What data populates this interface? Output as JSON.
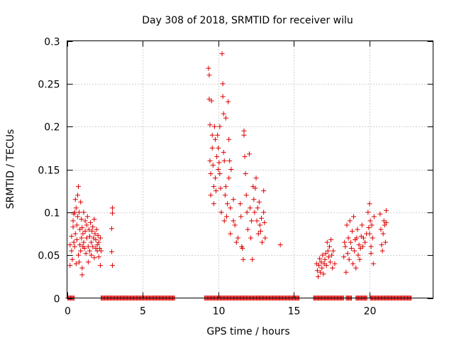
{
  "chart_data": {
    "type": "scatter",
    "title": "Day 308 of 2018, SRMTID for receiver wilu",
    "xlabel": "GPS time / hours",
    "ylabel": "SRMTID / TECUs",
    "xlim": [
      0,
      24.2
    ],
    "ylim": [
      0,
      0.3
    ],
    "xticks": [
      0,
      5,
      10,
      15,
      20
    ],
    "xtick_labels": [
      "0",
      "5",
      "10",
      "15",
      "20"
    ],
    "yticks": [
      0,
      0.05,
      0.1,
      0.15,
      0.2,
      0.25,
      0.3
    ],
    "ytick_labels": [
      "0",
      "0.05",
      "0.1",
      "0.15",
      "0.2",
      "0.25",
      "0.3"
    ],
    "grid": true,
    "marker": "+",
    "color": "#dd0000",
    "series": [
      {
        "name": "SRMTID",
        "points": [
          [
            0.2,
            0.062
          ],
          [
            0.2,
            0.038
          ],
          [
            0.3,
            0.055
          ],
          [
            0.3,
            0.072
          ],
          [
            0.35,
            0.045
          ],
          [
            0.4,
            0.09
          ],
          [
            0.4,
            0.083
          ],
          [
            0.45,
            0.098
          ],
          [
            0.45,
            0.065
          ],
          [
            0.5,
            0.1
          ],
          [
            0.5,
            0.06
          ],
          [
            0.55,
            0.075
          ],
          [
            0.55,
            0.115
          ],
          [
            0.6,
            0.105
          ],
          [
            0.6,
            0.04
          ],
          [
            0.65,
            0.085
          ],
          [
            0.65,
            0.068
          ],
          [
            0.7,
            0.12
          ],
          [
            0.7,
            0.095
          ],
          [
            0.75,
            0.13
          ],
          [
            0.75,
            0.05
          ],
          [
            0.8,
            0.1
          ],
          [
            0.8,
            0.042
          ],
          [
            0.85,
            0.08
          ],
          [
            0.85,
            0.062
          ],
          [
            0.9,
            0.112
          ],
          [
            0.9,
            0.055
          ],
          [
            0.95,
            0.092
          ],
          [
            0.95,
            0.07
          ],
          [
            1.0,
            0.035
          ],
          [
            1.0,
            0.027
          ],
          [
            1.0,
            0.082
          ],
          [
            1.05,
            0.06
          ],
          [
            1.05,
            0.075
          ],
          [
            1.1,
            0.065
          ],
          [
            1.1,
            0.1
          ],
          [
            1.15,
            0.058
          ],
          [
            1.2,
            0.09
          ],
          [
            1.2,
            0.078
          ],
          [
            1.25,
            0.052
          ],
          [
            1.3,
            0.07
          ],
          [
            1.3,
            0.085
          ],
          [
            1.35,
            0.095
          ],
          [
            1.4,
            0.06
          ],
          [
            1.4,
            0.042
          ],
          [
            1.45,
            0.08
          ],
          [
            1.5,
            0.072
          ],
          [
            1.5,
            0.055
          ],
          [
            1.55,
            0.088
          ],
          [
            1.6,
            0.065
          ],
          [
            1.6,
            0.05
          ],
          [
            1.65,
            0.078
          ],
          [
            1.7,
            0.06
          ],
          [
            1.7,
            0.083
          ],
          [
            1.75,
            0.07
          ],
          [
            1.8,
            0.047
          ],
          [
            1.8,
            0.092
          ],
          [
            1.85,
            0.075
          ],
          [
            1.9,
            0.058
          ],
          [
            1.9,
            0.068
          ],
          [
            1.95,
            0.08
          ],
          [
            2.0,
            0.062
          ],
          [
            2.0,
            0.055
          ],
          [
            2.05,
            0.073
          ],
          [
            2.1,
            0.048
          ],
          [
            2.1,
            0.065
          ],
          [
            2.15,
            0.058
          ],
          [
            2.2,
            0.07
          ],
          [
            2.2,
            0.038
          ],
          [
            2.25,
            0.055
          ],
          [
            3.0,
            0.105
          ],
          [
            3.0,
            0.099
          ],
          [
            2.95,
            0.081
          ],
          [
            2.95,
            0.054
          ],
          [
            3.0,
            0.038
          ],
          [
            9.35,
            0.268
          ],
          [
            9.4,
            0.26
          ],
          [
            9.4,
            0.232
          ],
          [
            9.45,
            0.202
          ],
          [
            9.45,
            0.16
          ],
          [
            9.5,
            0.145
          ],
          [
            9.5,
            0.12
          ],
          [
            9.55,
            0.23
          ],
          [
            9.6,
            0.19
          ],
          [
            9.6,
            0.175
          ],
          [
            9.65,
            0.155
          ],
          [
            9.7,
            0.13
          ],
          [
            9.7,
            0.11
          ],
          [
            9.75,
            0.2
          ],
          [
            9.8,
            0.185
          ],
          [
            9.8,
            0.14
          ],
          [
            9.85,
            0.125
          ],
          [
            9.9,
            0.165
          ],
          [
            9.95,
            0.19
          ],
          [
            10.0,
            0.175
          ],
          [
            10.0,
            0.15
          ],
          [
            10.05,
            0.158
          ],
          [
            10.1,
            0.2
          ],
          [
            10.1,
            0.145
          ],
          [
            10.15,
            0.128
          ],
          [
            10.2,
            0.1
          ],
          [
            10.25,
            0.285
          ],
          [
            10.3,
            0.235
          ],
          [
            10.3,
            0.25
          ],
          [
            10.35,
            0.215
          ],
          [
            10.35,
            0.17
          ],
          [
            10.4,
            0.16
          ],
          [
            10.4,
            0.09
          ],
          [
            10.45,
            0.12
          ],
          [
            10.5,
            0.21
          ],
          [
            10.5,
            0.13
          ],
          [
            10.55,
            0.095
          ],
          [
            10.6,
            0.11
          ],
          [
            10.65,
            0.229
          ],
          [
            10.7,
            0.185
          ],
          [
            10.7,
            0.14
          ],
          [
            10.75,
            0.16
          ],
          [
            10.8,
            0.105
          ],
          [
            10.8,
            0.075
          ],
          [
            10.85,
            0.15
          ],
          [
            11.0,
            0.115
          ],
          [
            11.0,
            0.09
          ],
          [
            11.1,
            0.085
          ],
          [
            11.2,
            0.065
          ],
          [
            11.3,
            0.07
          ],
          [
            11.45,
            0.11
          ],
          [
            11.5,
            0.095
          ],
          [
            11.55,
            0.06
          ],
          [
            11.6,
            0.058
          ],
          [
            11.65,
            0.045
          ],
          [
            11.7,
            0.195
          ],
          [
            11.7,
            0.19
          ],
          [
            11.75,
            0.165
          ],
          [
            11.8,
            0.145
          ],
          [
            11.85,
            0.12
          ],
          [
            11.9,
            0.1
          ],
          [
            11.95,
            0.08
          ],
          [
            12.05,
            0.168
          ],
          [
            12.1,
            0.105
          ],
          [
            12.15,
            0.07
          ],
          [
            12.2,
            0.09
          ],
          [
            12.25,
            0.045
          ],
          [
            12.3,
            0.13
          ],
          [
            12.35,
            0.115
          ],
          [
            12.4,
            0.1
          ],
          [
            12.45,
            0.128
          ],
          [
            12.5,
            0.14
          ],
          [
            12.55,
            0.09
          ],
          [
            12.6,
            0.105
          ],
          [
            12.65,
            0.075
          ],
          [
            12.7,
            0.112
          ],
          [
            12.75,
            0.085
          ],
          [
            12.8,
            0.078
          ],
          [
            12.85,
            0.093
          ],
          [
            12.9,
            0.065
          ],
          [
            13.0,
            0.125
          ],
          [
            13.0,
            0.1
          ],
          [
            13.05,
            0.088
          ],
          [
            13.1,
            0.07
          ],
          [
            14.1,
            0.062
          ],
          [
            16.5,
            0.04
          ],
          [
            16.55,
            0.032
          ],
          [
            16.6,
            0.025
          ],
          [
            16.65,
            0.038
          ],
          [
            16.7,
            0.046
          ],
          [
            16.75,
            0.03
          ],
          [
            16.8,
            0.042
          ],
          [
            16.85,
            0.035
          ],
          [
            16.9,
            0.05
          ],
          [
            16.95,
            0.028
          ],
          [
            17.0,
            0.04
          ],
          [
            17.05,
            0.045
          ],
          [
            17.1,
            0.052
          ],
          [
            17.15,
            0.038
          ],
          [
            17.2,
            0.065
          ],
          [
            17.25,
            0.055
          ],
          [
            17.3,
            0.048
          ],
          [
            17.35,
            0.06
          ],
          [
            17.4,
            0.042
          ],
          [
            17.45,
            0.068
          ],
          [
            17.5,
            0.05
          ],
          [
            17.55,
            0.035
          ],
          [
            17.6,
            0.055
          ],
          [
            17.7,
            0.04
          ],
          [
            18.3,
            0.048
          ],
          [
            18.35,
            0.065
          ],
          [
            18.4,
            0.06
          ],
          [
            18.45,
            0.03
          ],
          [
            18.5,
            0.085
          ],
          [
            18.55,
            0.052
          ],
          [
            18.6,
            0.07
          ],
          [
            18.65,
            0.045
          ],
          [
            18.7,
            0.09
          ],
          [
            18.75,
            0.065
          ],
          [
            18.8,
            0.058
          ],
          [
            18.85,
            0.078
          ],
          [
            18.9,
            0.04
          ],
          [
            18.95,
            0.095
          ],
          [
            19.0,
            0.055
          ],
          [
            19.05,
            0.068
          ],
          [
            19.1,
            0.035
          ],
          [
            19.15,
            0.07
          ],
          [
            19.2,
            0.08
          ],
          [
            19.25,
            0.05
          ],
          [
            19.3,
            0.062
          ],
          [
            19.35,
            0.045
          ],
          [
            19.4,
            0.058
          ],
          [
            19.45,
            0.072
          ],
          [
            19.5,
            0.085
          ],
          [
            19.55,
            0.06
          ],
          [
            19.6,
            0.07
          ],
          [
            19.7,
            0.065
          ],
          [
            19.8,
            0.075
          ],
          [
            19.9,
            0.1
          ],
          [
            19.95,
            0.082
          ],
          [
            20.0,
            0.11
          ],
          [
            20.0,
            0.075
          ],
          [
            20.05,
            0.09
          ],
          [
            20.1,
            0.06
          ],
          [
            20.1,
            0.052
          ],
          [
            20.15,
            0.085
          ],
          [
            20.2,
            0.07
          ],
          [
            20.25,
            0.04
          ],
          [
            20.3,
            0.095
          ],
          [
            20.7,
            0.098
          ],
          [
            20.75,
            0.08
          ],
          [
            20.8,
            0.062
          ],
          [
            20.85,
            0.055
          ],
          [
            20.9,
            0.075
          ],
          [
            20.95,
            0.09
          ],
          [
            21.0,
            0.085
          ],
          [
            21.05,
            0.065
          ],
          [
            21.1,
            0.102
          ],
          [
            21.1,
            0.088
          ]
        ],
        "zero_segments": [
          [
            0.05,
            0.5
          ],
          [
            2.25,
            7.15
          ],
          [
            9.1,
            15.35
          ],
          [
            16.3,
            18.3
          ],
          [
            18.45,
            18.85
          ],
          [
            19.1,
            19.85
          ],
          [
            20.05,
            22.75
          ]
        ]
      }
    ]
  }
}
